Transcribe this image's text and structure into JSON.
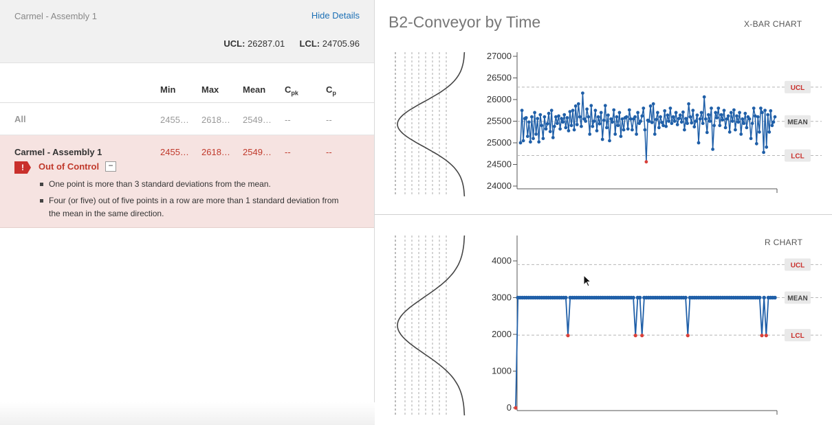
{
  "left": {
    "assembly_name": "Carmel - Assembly 1",
    "hide_details_label": "Hide Details",
    "ucl_label": "UCL:",
    "ucl_value": "26287.01",
    "lcl_label": "LCL:",
    "lcl_value": "24705.96",
    "columns": [
      "Min",
      "Max",
      "Mean",
      "C",
      "C"
    ],
    "column_subs": [
      "",
      "",
      "",
      "pk",
      "p"
    ],
    "rows": [
      {
        "name": "All",
        "min": "2455…",
        "max": "2618…",
        "mean": "2549…",
        "cpk": "--",
        "cp": "--"
      },
      {
        "name": "Carmel - Assembly 1",
        "min": "2455…",
        "max": "2618…",
        "mean": "2549…",
        "cpk": "--",
        "cp": "--"
      }
    ],
    "alert": {
      "icon_glyph": "!",
      "status": "Out of Control",
      "toggle": "−",
      "messages": [
        "One point is more than 3 standard deviations from the mean.",
        "Four (or five) out of five points in a row are more than 1 standard deviation from the mean in the same direction."
      ]
    }
  },
  "right": {
    "title": "B2-Conveyor by Time",
    "xbar_label": "X-BAR CHART",
    "r_label": "R CHART"
  },
  "colors": {
    "line": "#1f5fa8",
    "alarm": "#d9403a",
    "limit_text": "#c9302c"
  },
  "chart_data": [
    {
      "type": "line",
      "name": "X-BAR CHART",
      "ylim": [
        24000,
        27000
      ],
      "yticks": [
        "27000",
        "26500",
        "26000",
        "25500",
        "25000",
        "24500",
        "24000"
      ],
      "ucl": 26287.01,
      "lcl": 24705.96,
      "mean": 25496,
      "limit_labels": [
        "UCL",
        "MEAN",
        "LCL"
      ],
      "values": [
        25000,
        25750,
        25050,
        25560,
        25580,
        25150,
        25480,
        25020,
        25600,
        25100,
        25700,
        25200,
        25560,
        25020,
        25650,
        25400,
        25100,
        25600,
        25320,
        25440,
        25680,
        25260,
        25750,
        25120,
        25380,
        25600,
        25450,
        25620,
        25320,
        25560,
        25480,
        25650,
        25350,
        25580,
        25280,
        25720,
        25400,
        25750,
        25300,
        25850,
        25420,
        25900,
        25600,
        25380,
        26150,
        25550,
        25500,
        25780,
        25600,
        25200,
        25860,
        25380,
        25500,
        25750,
        25280,
        25600,
        25440,
        25700,
        25080,
        25520,
        25860,
        25350,
        25640,
        25050,
        25550,
        25480,
        25760,
        25200,
        25600,
        25400,
        25700,
        25150,
        25550,
        25300,
        25580,
        25600,
        25320,
        25760,
        25550,
        25300,
        25550,
        25600,
        25200,
        25700,
        25450,
        25500,
        25620,
        25800,
        25300,
        24560,
        25520,
        25500,
        25850,
        25470,
        25900,
        25200,
        25540,
        25700,
        25350,
        25600,
        25470,
        25400,
        25740,
        25380,
        25640,
        25500,
        25800,
        25450,
        25600,
        25500,
        25700,
        25420,
        25560,
        25640,
        25480,
        25710,
        25300,
        25560,
        25450,
        25900,
        25600,
        25460,
        25750,
        25370,
        25500,
        25640,
        25000,
        25550,
        25700,
        25450,
        26060,
        25550,
        25240,
        25650,
        25500,
        25800,
        24850,
        25400,
        25700,
        25580,
        25800,
        25400,
        25650,
        25530,
        25750,
        25350,
        25550,
        25620,
        25250,
        25700,
        25500,
        25760,
        25300,
        25620,
        25480,
        25700,
        25200,
        25550,
        25450,
        25680,
        25350,
        25600,
        25550,
        25100,
        25450,
        25800,
        25620,
        24980,
        25600,
        25250,
        25800,
        25700,
        24780,
        25750,
        24900,
        25650,
        25250,
        25740,
        25400,
        25480,
        25600
      ]
    },
    {
      "type": "line",
      "name": "R CHART",
      "ylim": [
        0,
        4000
      ],
      "yticks": [
        "4000",
        "3000",
        "2000",
        "1000",
        "0"
      ],
      "ucl": 3900,
      "lcl": 1980,
      "mean": 3000,
      "limit_labels": [
        "UCL",
        "MEAN",
        "LCL"
      ],
      "first_value": 0,
      "base_value": 3000,
      "count": 120,
      "dips": [
        {
          "index": 24,
          "value": 1970
        },
        {
          "index": 55,
          "value": 1970
        },
        {
          "index": 58,
          "value": 1970
        },
        {
          "index": 79,
          "value": 1970
        },
        {
          "index": 113,
          "value": 1970
        },
        {
          "index": 115,
          "value": 1970
        }
      ]
    }
  ]
}
